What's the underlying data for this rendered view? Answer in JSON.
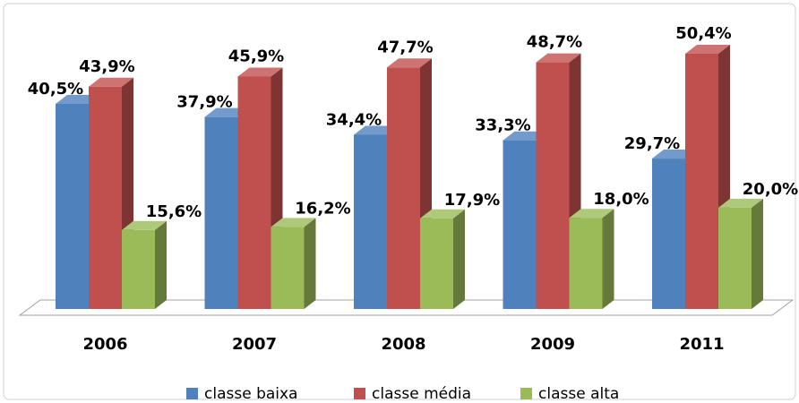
{
  "chart_data": {
    "type": "bar3d",
    "categories": [
      "2006",
      "2007",
      "2008",
      "2009",
      "2011"
    ],
    "series": [
      {
        "name": "classe baixa",
        "color": "#4f81bd",
        "values": [
          40.5,
          37.9,
          34.4,
          33.3,
          29.7
        ],
        "value_labels": [
          "40,5%",
          "37,9%",
          "34,4%",
          "33,3%",
          "29,7%"
        ]
      },
      {
        "name": "classe média",
        "color": "#c0504d",
        "values": [
          43.9,
          45.9,
          47.7,
          48.7,
          50.4
        ],
        "value_labels": [
          "43,9%",
          "45,9%",
          "47,7%",
          "48,7%",
          "50,4%"
        ]
      },
      {
        "name": "classe alta",
        "color": "#9bbb59",
        "values": [
          15.6,
          16.2,
          17.9,
          18.0,
          20.0
        ],
        "value_labels": [
          "15,6%",
          "16,2%",
          "17,9%",
          "18,0%",
          "20,0%"
        ]
      }
    ],
    "legend": "bottom"
  }
}
